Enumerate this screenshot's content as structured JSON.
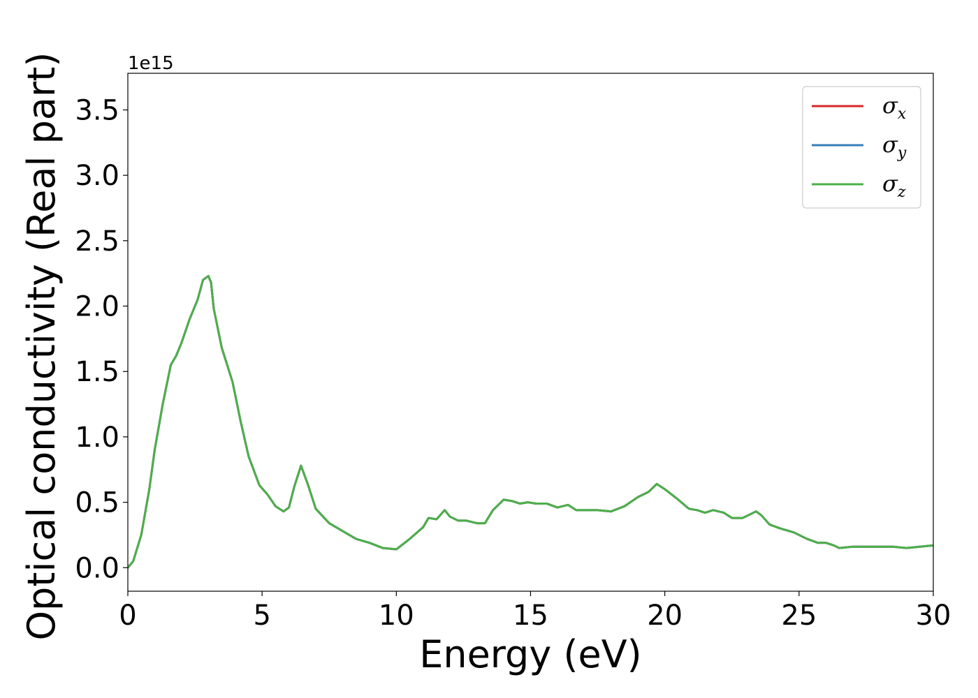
{
  "chart_data": {
    "type": "line",
    "title": "",
    "xlabel": "Energy (eV)",
    "ylabel": "Optical conductivity (Real part)",
    "y_offset_label": "1e15",
    "xlim": [
      0,
      30
    ],
    "ylim": [
      -0.18,
      3.78
    ],
    "x_ticks": [
      0,
      5,
      10,
      15,
      20,
      25,
      30
    ],
    "x_tick_labels": [
      "0",
      "5",
      "10",
      "15",
      "20",
      "25",
      "30"
    ],
    "y_ticks": [
      0.0,
      0.5,
      1.0,
      1.5,
      2.0,
      2.5,
      3.0,
      3.5
    ],
    "y_tick_labels": [
      "0.0",
      "0.5",
      "1.0",
      "1.5",
      "2.0",
      "2.5",
      "3.0",
      "3.5"
    ],
    "grid": false,
    "legend_position": "top-right",
    "x": [
      0,
      0.2,
      0.5,
      0.8,
      1.0,
      1.3,
      1.6,
      1.8,
      2.0,
      2.3,
      2.6,
      2.8,
      3.0,
      3.1,
      3.2,
      3.5,
      3.9,
      4.2,
      4.5,
      4.9,
      5.2,
      5.5,
      5.8,
      6.0,
      6.2,
      6.45,
      6.7,
      7.0,
      7.5,
      8.0,
      8.5,
      9.0,
      9.5,
      10.0,
      10.5,
      11.0,
      11.2,
      11.5,
      11.8,
      12.0,
      12.3,
      12.6,
      13.0,
      13.3,
      13.6,
      14.0,
      14.3,
      14.6,
      14.9,
      15.2,
      15.6,
      16.0,
      16.4,
      16.7,
      17.0,
      17.5,
      18.0,
      18.5,
      19.0,
      19.4,
      19.7,
      20.0,
      20.5,
      20.9,
      21.2,
      21.5,
      21.8,
      22.2,
      22.5,
      22.9,
      23.2,
      23.4,
      23.6,
      23.9,
      24.3,
      24.8,
      25.3,
      25.7,
      26.0,
      26.3,
      26.5,
      27.0,
      27.5,
      28.0,
      28.5,
      29.0,
      29.5,
      30.0
    ],
    "series": [
      {
        "name": "σx",
        "label_main": "σ",
        "label_sub": "x",
        "color": "#d62728",
        "values": [
          0.0,
          0.05,
          0.25,
          0.6,
          0.9,
          1.25,
          1.55,
          1.62,
          1.72,
          1.9,
          2.05,
          2.2,
          2.23,
          2.18,
          1.98,
          1.68,
          1.42,
          1.12,
          0.85,
          0.63,
          0.56,
          0.47,
          0.43,
          0.46,
          0.62,
          0.78,
          0.64,
          0.45,
          0.34,
          0.28,
          0.22,
          0.19,
          0.15,
          0.14,
          0.22,
          0.31,
          0.38,
          0.37,
          0.44,
          0.39,
          0.36,
          0.36,
          0.34,
          0.34,
          0.44,
          0.52,
          0.51,
          0.49,
          0.5,
          0.49,
          0.49,
          0.46,
          0.48,
          0.44,
          0.44,
          0.44,
          0.43,
          0.47,
          0.54,
          0.58,
          0.64,
          0.6,
          0.52,
          0.45,
          0.44,
          0.42,
          0.44,
          0.42,
          0.38,
          0.38,
          0.41,
          0.43,
          0.4,
          0.33,
          0.3,
          0.27,
          0.22,
          0.19,
          0.19,
          0.17,
          0.15,
          0.16,
          0.16,
          0.16,
          0.16,
          0.15,
          0.16,
          0.17
        ]
      },
      {
        "name": "σy",
        "label_main": "σ",
        "label_sub": "y",
        "color": "#377eb8",
        "values": [
          0.0,
          0.05,
          0.25,
          0.6,
          0.9,
          1.25,
          1.55,
          1.62,
          1.72,
          1.9,
          2.05,
          2.2,
          2.23,
          2.18,
          1.98,
          1.68,
          1.42,
          1.12,
          0.85,
          0.63,
          0.56,
          0.47,
          0.43,
          0.46,
          0.62,
          0.78,
          0.64,
          0.45,
          0.34,
          0.28,
          0.22,
          0.19,
          0.15,
          0.14,
          0.22,
          0.31,
          0.38,
          0.37,
          0.44,
          0.39,
          0.36,
          0.36,
          0.34,
          0.34,
          0.44,
          0.52,
          0.51,
          0.49,
          0.5,
          0.49,
          0.49,
          0.46,
          0.48,
          0.44,
          0.44,
          0.44,
          0.43,
          0.47,
          0.54,
          0.58,
          0.64,
          0.6,
          0.52,
          0.45,
          0.44,
          0.42,
          0.44,
          0.42,
          0.38,
          0.38,
          0.41,
          0.43,
          0.4,
          0.33,
          0.3,
          0.27,
          0.22,
          0.19,
          0.19,
          0.17,
          0.15,
          0.16,
          0.16,
          0.16,
          0.16,
          0.15,
          0.16,
          0.17
        ]
      },
      {
        "name": "σz",
        "label_main": "σ",
        "label_sub": "z",
        "color": "#4daf4a",
        "values": [
          0.0,
          0.05,
          0.25,
          0.6,
          0.9,
          1.25,
          1.55,
          1.62,
          1.72,
          1.9,
          2.05,
          2.2,
          2.23,
          2.18,
          1.98,
          1.68,
          1.42,
          1.12,
          0.85,
          0.63,
          0.56,
          0.47,
          0.43,
          0.46,
          0.62,
          0.78,
          0.64,
          0.45,
          0.34,
          0.28,
          0.22,
          0.19,
          0.15,
          0.14,
          0.22,
          0.31,
          0.38,
          0.37,
          0.44,
          0.39,
          0.36,
          0.36,
          0.34,
          0.34,
          0.44,
          0.52,
          0.51,
          0.49,
          0.5,
          0.49,
          0.49,
          0.46,
          0.48,
          0.44,
          0.44,
          0.44,
          0.43,
          0.47,
          0.54,
          0.58,
          0.64,
          0.6,
          0.52,
          0.45,
          0.44,
          0.42,
          0.44,
          0.42,
          0.38,
          0.38,
          0.41,
          0.43,
          0.4,
          0.33,
          0.3,
          0.27,
          0.22,
          0.19,
          0.19,
          0.17,
          0.15,
          0.16,
          0.16,
          0.16,
          0.16,
          0.15,
          0.16,
          0.17
        ]
      }
    ]
  }
}
